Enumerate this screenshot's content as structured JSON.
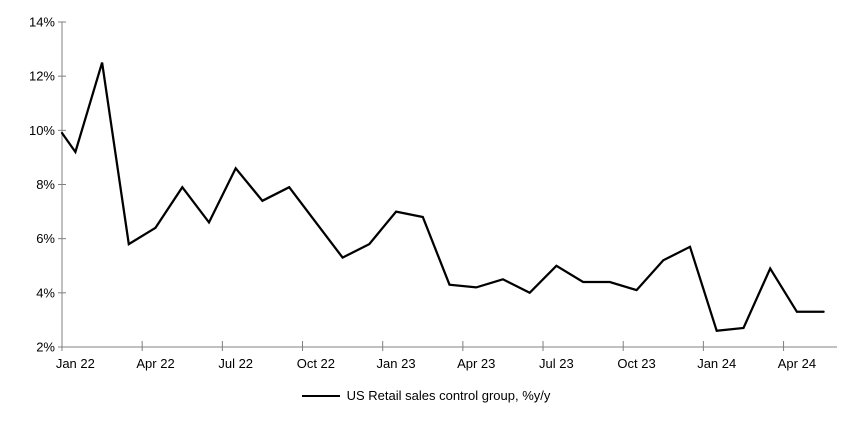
{
  "chart_data": {
    "type": "line",
    "title": "",
    "legend_label": "US Retail sales control group, %y/y",
    "legend_position": "bottom-center",
    "grid": false,
    "x_categories": [
      "Jan 22",
      "Feb 22",
      "Mar 22",
      "Apr 22",
      "May 22",
      "Jun 22",
      "Jul 22",
      "Aug 22",
      "Sep 22",
      "Oct 22",
      "Nov 22",
      "Dec 22",
      "Jan 23",
      "Feb 23",
      "Mar 23",
      "Apr 23",
      "May 23",
      "Jun 23",
      "Jul 23",
      "Aug 23",
      "Sep 23",
      "Oct 23",
      "Nov 23",
      "Dec 23",
      "Jan 24",
      "Feb 24",
      "Mar 24",
      "Apr 24",
      "May 24"
    ],
    "values": [
      9.2,
      12.5,
      5.8,
      6.4,
      7.9,
      6.6,
      8.6,
      7.4,
      7.9,
      6.6,
      5.3,
      5.8,
      7.0,
      6.8,
      4.3,
      4.2,
      4.5,
      4.0,
      5.0,
      4.4,
      4.4,
      4.1,
      5.2,
      5.7,
      2.6,
      2.7,
      4.9,
      3.3,
      3.3
    ],
    "left_edge_value": 9.9,
    "y_axis": {
      "min": 2,
      "max": 14,
      "step": 2,
      "suffix": "%",
      "tick_labels": [
        "2%",
        "4%",
        "6%",
        "8%",
        "10%",
        "12%",
        "14%"
      ]
    },
    "x_axis": {
      "tick_labels": [
        "Jan 22",
        "Apr 22",
        "Jul 22",
        "Oct 22",
        "Jan 23",
        "Apr 23",
        "Jul 23",
        "Oct 23",
        "Jan 24",
        "Apr 24"
      ],
      "label_every_n_months": 3
    },
    "colors": {
      "line": "#000000",
      "axis": "#808080",
      "text": "#000000",
      "background": "#ffffff"
    }
  }
}
